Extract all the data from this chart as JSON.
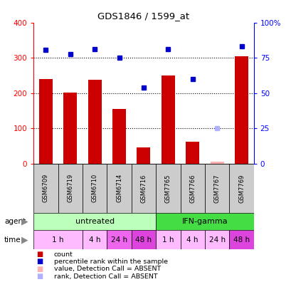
{
  "title": "GDS1846 / 1599_at",
  "samples": [
    "GSM6709",
    "GSM6719",
    "GSM6710",
    "GSM6714",
    "GSM6716",
    "GSM7765",
    "GSM7766",
    "GSM7767",
    "GSM7769"
  ],
  "bar_values": [
    240,
    202,
    238,
    155,
    45,
    250,
    62,
    5,
    305
  ],
  "bar_absent": [
    false,
    false,
    false,
    false,
    false,
    false,
    false,
    true,
    false
  ],
  "dot_values": [
    322,
    310,
    325,
    300,
    215,
    325,
    240,
    100,
    333
  ],
  "dot_absent": [
    false,
    false,
    false,
    false,
    false,
    false,
    false,
    true,
    false
  ],
  "bar_color": "#cc0000",
  "bar_absent_color": "#ffb0b0",
  "dot_color": "#0000cc",
  "dot_absent_color": "#b0b0ff",
  "ylim_left": [
    0,
    400
  ],
  "ylim_right": [
    0,
    100
  ],
  "yticks_left": [
    0,
    100,
    200,
    300,
    400
  ],
  "yticks_right": [
    0,
    25,
    50,
    75,
    100
  ],
  "yticklabels_right": [
    "0",
    "25",
    "50",
    "75",
    "100%"
  ],
  "dotted_line_values": [
    100,
    200,
    300
  ],
  "agent_items": [
    {
      "label": "untreated",
      "start": 0,
      "end": 5,
      "color": "#bbffbb"
    },
    {
      "label": "IFN-gamma",
      "start": 5,
      "end": 9,
      "color": "#44dd44"
    }
  ],
  "time_items": [
    {
      "label": "1 h",
      "start": 0,
      "end": 2,
      "color": "#ffbbff"
    },
    {
      "label": "4 h",
      "start": 2,
      "end": 3,
      "color": "#ffbbff"
    },
    {
      "label": "24 h",
      "start": 3,
      "end": 4,
      "color": "#ee66ee"
    },
    {
      "label": "48 h",
      "start": 4,
      "end": 5,
      "color": "#dd44dd"
    },
    {
      "label": "1 h",
      "start": 5,
      "end": 6,
      "color": "#ffbbff"
    },
    {
      "label": "4 h",
      "start": 6,
      "end": 7,
      "color": "#ffbbff"
    },
    {
      "label": "24 h",
      "start": 7,
      "end": 8,
      "color": "#ffbbff"
    },
    {
      "label": "48 h",
      "start": 8,
      "end": 9,
      "color": "#dd44dd"
    }
  ],
  "legend_items": [
    {
      "color": "#cc0000",
      "text": "count"
    },
    {
      "color": "#0000cc",
      "text": "percentile rank within the sample"
    },
    {
      "color": "#ffb0b0",
      "text": "value, Detection Call = ABSENT"
    },
    {
      "color": "#b0b0ff",
      "text": "rank, Detection Call = ABSENT"
    }
  ],
  "background_color": "#ffffff"
}
